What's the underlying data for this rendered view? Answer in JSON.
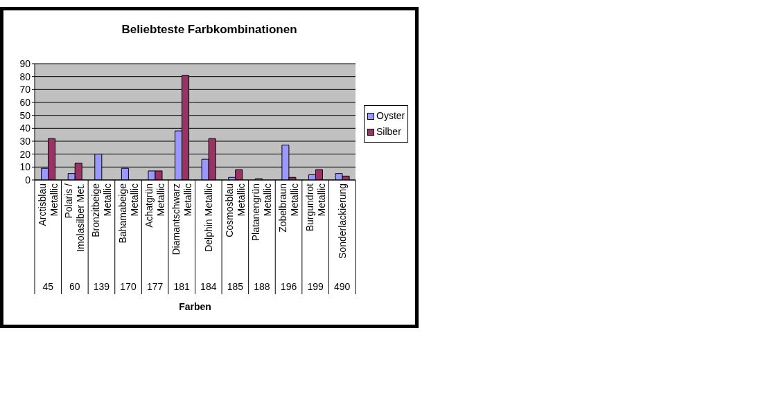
{
  "chart_data": {
    "type": "bar",
    "title": "Beliebteste Farbkombinationen",
    "xlabel": "Farben",
    "categories": [
      "Arctisblau\nMetallic",
      "Polaris /\nImolasilber Met.",
      "Bronzitbeige\nMetallic",
      "Bahamabeige\nMetallic",
      "Achatgrün\nMetallic",
      "Diamantschwarz\nMetallic",
      "Delphin Metallic",
      "Cosmosblau\nMetallic",
      "Platanengrün\nMetallic",
      "Zobelbraun\nMetallic",
      "Burgundrot\nMetallic",
      "Sonderlackierung"
    ],
    "series": [
      {
        "name": "Oyster",
        "color": "#9999ff",
        "values": [
          9,
          5,
          20,
          9,
          7,
          38,
          16,
          2,
          1,
          27,
          4,
          5
        ]
      },
      {
        "name": "Silber",
        "color": "#993366",
        "values": [
          32,
          13,
          null,
          null,
          7,
          81,
          32,
          8,
          null,
          2,
          8,
          3
        ]
      }
    ],
    "annotations": [
      "45",
      "60",
      "139",
      "170",
      "177",
      "181",
      "184",
      "185",
      "188",
      "196",
      "199",
      "490"
    ],
    "ylim": [
      0,
      90
    ],
    "yticks": [
      0,
      10,
      20,
      30,
      40,
      50,
      60,
      70,
      80,
      90
    ],
    "grid": "y",
    "legend": "right"
  }
}
